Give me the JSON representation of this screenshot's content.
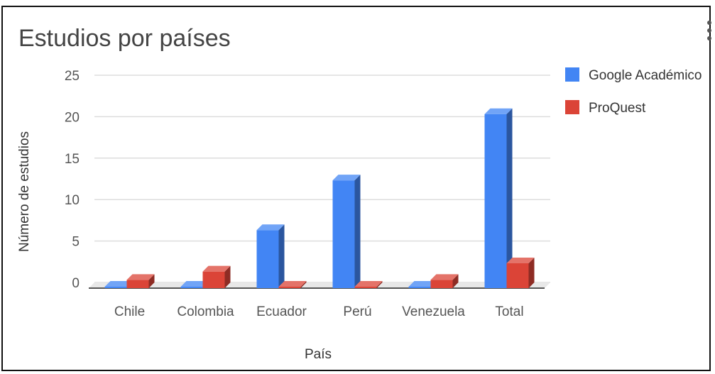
{
  "chart_data": {
    "type": "bar",
    "title": "Estudios por países",
    "xlabel": "País",
    "ylabel": "Número de estudios",
    "categories": [
      "Chile",
      "Colombia",
      "Ecuador",
      "Perú",
      "Venezuela",
      "Total"
    ],
    "series": [
      {
        "name": "Google Académico",
        "color": "#4285f4",
        "values": [
          0,
          0,
          7,
          13,
          0,
          21
        ]
      },
      {
        "name": "ProQuest",
        "color": "#db4437",
        "values": [
          1,
          2,
          0,
          0,
          1,
          3
        ]
      }
    ],
    "yticks": [
      0,
      5,
      10,
      15,
      20,
      25
    ],
    "ylim": [
      0,
      25
    ],
    "grid": true,
    "legend_position": "right",
    "style": "3d"
  },
  "menu_icon": "vertical-dots-icon"
}
